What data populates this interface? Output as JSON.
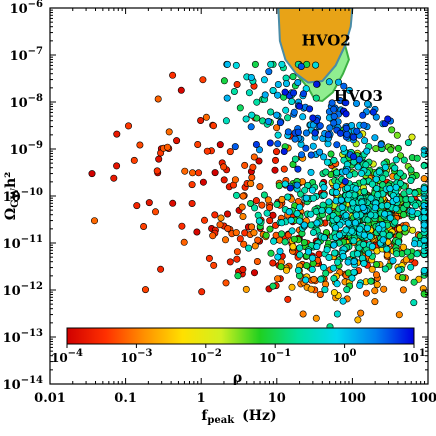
{
  "chart_data": {
    "type": "scatter",
    "xlabel": "f",
    "xlabel_sub": "peak",
    "xlabel_unit": "(Hz)",
    "ylabel": "Ω",
    "ylabel_sub": "GW",
    "ylabel_tail": "h²",
    "x_scale": "log",
    "y_scale": "log",
    "xlim": [
      0.01,
      1000
    ],
    "ylim": [
      1e-14,
      1e-06
    ],
    "x_ticks": [
      {
        "value": 0.01,
        "label": "0.01"
      },
      {
        "value": 0.1,
        "label": "0.1"
      },
      {
        "value": 1,
        "label": "1"
      },
      {
        "value": 10,
        "label": "10"
      },
      {
        "value": 100,
        "label": "100"
      },
      {
        "value": 1000,
        "label": "1000"
      }
    ],
    "y_ticks": [
      {
        "value": 1e-14,
        "base": "10",
        "exp": "−14"
      },
      {
        "value": 1e-13,
        "base": "10",
        "exp": "−13"
      },
      {
        "value": 1e-12,
        "base": "10",
        "exp": "−12"
      },
      {
        "value": 1e-11,
        "base": "10",
        "exp": "−11"
      },
      {
        "value": 1e-10,
        "base": "10",
        "exp": "−10"
      },
      {
        "value": 1e-09,
        "base": "10",
        "exp": "−9"
      },
      {
        "value": 1e-08,
        "base": "10",
        "exp": "−8"
      },
      {
        "value": 1e-07,
        "base": "10",
        "exp": "−7"
      },
      {
        "value": 1e-06,
        "base": "10",
        "exp": "−6"
      }
    ],
    "sensitivity_regions": [
      {
        "name": "HVO2",
        "color": "#E8A317",
        "edge_color": "#4A8CA8",
        "label_at": [
          45,
          1.6e-07
        ],
        "boundary": [
          [
            10.5,
            1e-06
          ],
          [
            11,
            2e-07
          ],
          [
            13,
            8e-08
          ],
          [
            18,
            4e-08
          ],
          [
            26,
            2.6e-08
          ],
          [
            40,
            2.8e-08
          ],
          [
            60,
            6e-08
          ],
          [
            80,
            1.6e-07
          ],
          [
            95,
            4e-07
          ],
          [
            100,
            1e-06
          ]
        ]
      },
      {
        "name": "HVO3",
        "color": "#90EE90",
        "edge_color": "#3CB043",
        "label_at": [
          120,
          1.05e-08
        ],
        "boundary": [
          [
            18,
            4e-08
          ],
          [
            26,
            2e-08
          ],
          [
            32,
            1.1e-08
          ],
          [
            40,
            1.05e-08
          ],
          [
            55,
            1.6e-08
          ],
          [
            75,
            4e-08
          ],
          [
            90,
            8e-08
          ],
          [
            80,
            1.6e-07
          ],
          [
            60,
            6e-08
          ],
          [
            40,
            2.8e-08
          ],
          [
            26,
            2.6e-08
          ]
        ]
      }
    ],
    "colorbar": {
      "label": "ρ",
      "range": [
        0.0001,
        10
      ],
      "scale": "log",
      "ticks": [
        {
          "value": 0.0001,
          "base": "10",
          "exp": "−4"
        },
        {
          "value": 0.001,
          "base": "10",
          "exp": "−3"
        },
        {
          "value": 0.01,
          "base": "10",
          "exp": "−2"
        },
        {
          "value": 0.1,
          "base": "10",
          "exp": "−1"
        },
        {
          "value": 1,
          "base": "10",
          "exp": "0"
        },
        {
          "value": 10,
          "base": "10",
          "exp": "1"
        }
      ],
      "colormap": [
        "#d00000",
        "#ff3000",
        "#ff9000",
        "#ffe000",
        "#d0f020",
        "#20d020",
        "#00e0a0",
        "#00d8f0",
        "#0080f0",
        "#0000e0"
      ]
    },
    "clusters": [
      {
        "center": [
          120,
          3e-11
        ],
        "count": 520,
        "spread": [
          0.55,
          0.7
        ],
        "rho": [
          0.05,
          1.0
        ],
        "seed": 7
      },
      {
        "center": [
          300,
          3e-11
        ],
        "count": 160,
        "spread": [
          0.22,
          0.45
        ],
        "rho": [
          0.0002,
          0.005
        ],
        "seed": 11
      },
      {
        "center": [
          200,
          1e-10
        ],
        "count": 160,
        "spread": [
          0.35,
          0.6
        ],
        "rho": [
          0.01,
          0.3
        ],
        "seed": 13
      },
      {
        "center": [
          40,
          3e-09
        ],
        "count": 140,
        "spread": [
          0.45,
          0.45
        ],
        "rho": [
          1,
          8
        ],
        "seed": 17
      },
      {
        "center": [
          10,
          3e-11
        ],
        "count": 160,
        "spread": [
          0.55,
          0.8
        ],
        "rho": [
          0.0001,
          0.0015
        ],
        "seed": 19
      },
      {
        "center": [
          0.8,
          2e-10
        ],
        "count": 60,
        "spread": [
          0.6,
          0.9
        ],
        "rho": [
          0.0001,
          0.0008
        ],
        "seed": 23
      },
      {
        "center": [
          80,
          2e-12
        ],
        "count": 70,
        "spread": [
          0.5,
          0.4
        ],
        "rho": [
          0.0005,
          0.004
        ],
        "seed": 29
      },
      {
        "center": [
          8,
          2e-08
        ],
        "count": 50,
        "spread": [
          0.35,
          0.55
        ],
        "rho": [
          0.08,
          1.5
        ],
        "seed": 31
      }
    ]
  }
}
